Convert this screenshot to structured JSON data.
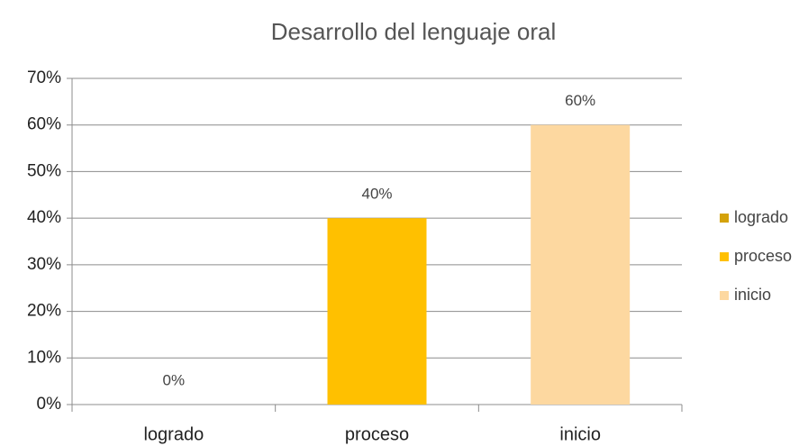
{
  "chart_data": {
    "type": "bar",
    "title": "Desarrollo del lenguaje oral",
    "categories": [
      "logrado",
      "proceso",
      "inicio"
    ],
    "values": [
      0,
      40,
      60
    ],
    "value_labels": [
      "0%",
      "40%",
      "60%"
    ],
    "colors": [
      "#d4a20a",
      "#ffc000",
      "#fdd8a0"
    ],
    "ylim": [
      0,
      70
    ],
    "yticks": [
      {
        "value": 0,
        "label": "0%"
      },
      {
        "value": 10,
        "label": "10%"
      },
      {
        "value": 20,
        "label": "20%"
      },
      {
        "value": 30,
        "label": "30%"
      },
      {
        "value": 40,
        "label": "40%"
      },
      {
        "value": 50,
        "label": "50%"
      },
      {
        "value": 60,
        "label": "60%"
      },
      {
        "value": 70,
        "label": "70%"
      }
    ],
    "grid": true,
    "legend": "right"
  }
}
